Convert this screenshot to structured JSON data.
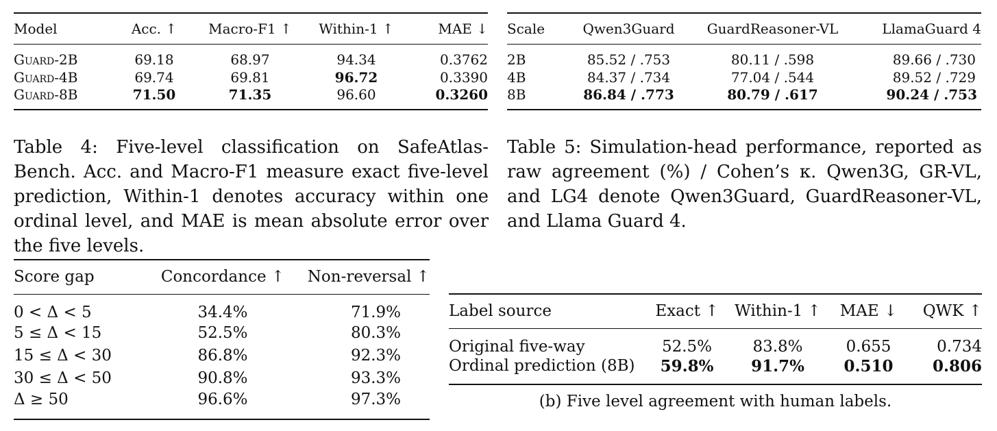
{
  "table4": {
    "headers": [
      "Model",
      "Acc. ↑",
      "Macro-F1 ↑",
      "Within-1 ↑",
      "MAE ↓"
    ],
    "rows": [
      {
        "model": "Guard-2B",
        "acc": "69.18",
        "f1": "68.97",
        "within1": "94.34",
        "mae": "0.3762"
      },
      {
        "model": "Guard-4B",
        "acc": "69.74",
        "f1": "69.81",
        "within1": "96.72",
        "mae": "0.3390"
      },
      {
        "model": "Guard-8B",
        "acc": "71.50",
        "f1": "71.35",
        "within1": "96.60",
        "mae": "0.3260"
      }
    ],
    "caption": "Table 4: Five-level classification on SafeAtlas-Bench. Acc. and Macro-F1 measure exact five-level prediction, Within-1 denotes accuracy within one ordinal level, and MAE is mean absolute error over the five levels."
  },
  "table5": {
    "headers": [
      "Scale",
      "Qwen3Guard",
      "GuardReasoner-VL",
      "LlamaGuard 4"
    ],
    "rows": [
      {
        "scale": "2B",
        "qwen": "85.52 / .753",
        "grvl": "80.11 / .598",
        "lg": "89.66 / .730"
      },
      {
        "scale": "4B",
        "qwen": "84.37 / .734",
        "grvl": "77.04 / .544",
        "lg": "89.52 / .729"
      },
      {
        "scale": "8B",
        "qwen": "86.84 / .773",
        "grvl": "80.79 / .617",
        "lg": "90.24 / .753"
      }
    ],
    "caption": "Table 5: Simulation-head performance, reported as raw agreement (%) / Cohen’s κ. Qwen3G, GR-VL, and LG4 denote Qwen3Guard, GuardReasoner-VL, and Llama Guard 4."
  },
  "table_a": {
    "headers": [
      "Score gap",
      "Concordance ↑",
      "Non-reversal ↑"
    ],
    "rows": [
      {
        "gap": "0 < Δ < 5",
        "conc": "34.4%",
        "nonrev": "71.9%"
      },
      {
        "gap": "5 ≤ Δ < 15",
        "conc": "52.5%",
        "nonrev": "80.3%"
      },
      {
        "gap": "15 ≤ Δ < 30",
        "conc": "86.8%",
        "nonrev": "92.3%"
      },
      {
        "gap": "30 ≤ Δ < 50",
        "conc": "90.8%",
        "nonrev": "93.3%"
      },
      {
        "gap": "Δ ≥ 50",
        "conc": "96.6%",
        "nonrev": "97.3%"
      }
    ]
  },
  "table_b": {
    "headers": [
      "Label source",
      "Exact ↑",
      "Within-1 ↑",
      "MAE ↓",
      "QWK ↑"
    ],
    "rows": [
      {
        "source": "Original five-way",
        "exact": "52.5%",
        "within1": "83.8%",
        "mae": "0.655",
        "qwk": "0.734"
      },
      {
        "source": "Ordinal prediction (8B)",
        "exact": "59.8%",
        "within1": "91.7%",
        "mae": "0.510",
        "qwk": "0.806"
      }
    ],
    "caption": "(b) Five level agreement with human labels."
  }
}
